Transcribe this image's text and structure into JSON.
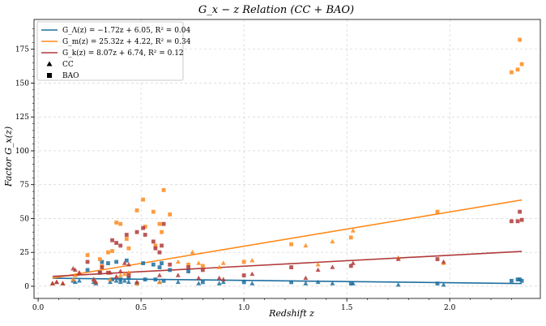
{
  "chart_data": {
    "type": "scatter",
    "title": "G_x − z Relation (CC + BAO)",
    "xlabel": "Redshift   z",
    "ylabel": "Factor   G_x(z)",
    "xlim": [
      -0.02,
      2.44
    ],
    "ylim": [
      -9,
      197
    ],
    "xticks": [
      0.0,
      0.5,
      1.0,
      1.5,
      2.0
    ],
    "xtick_labels": [
      "0.0",
      "0.5",
      "1.0",
      "1.5",
      "2.0"
    ],
    "yticks": [
      0,
      25,
      50,
      75,
      100,
      125,
      150,
      175
    ],
    "ytick_labels": [
      "0",
      "25",
      "50",
      "75",
      "100",
      "125",
      "150",
      "175"
    ],
    "grid": true,
    "legend_position": "top-left",
    "colors": {
      "lambda": "#1f6f9f",
      "m": "#ff8a1c",
      "k": "#b03a3a"
    },
    "fits": [
      {
        "key": "lambda",
        "label": "G_Λ(z) = −1.72z + 6.05, R² = 0.04",
        "slope": -1.72,
        "intercept": 6.05,
        "x_range": [
          0.07,
          2.35
        ]
      },
      {
        "key": "m",
        "label": "G_m(z) = 25.32z + 4.22, R² = 0.34",
        "slope": 25.32,
        "intercept": 4.22,
        "x_range": [
          0.07,
          2.35
        ]
      },
      {
        "key": "k",
        "label": "G_k(z) = 8.07z + 6.74, R² = 0.12",
        "slope": 8.07,
        "intercept": 6.74,
        "x_range": [
          0.07,
          2.35
        ]
      }
    ],
    "marker_legend": [
      {
        "marker": "triangle",
        "label": "CC"
      },
      {
        "marker": "square",
        "label": "BAO"
      }
    ],
    "series": [
      {
        "key": "lambda",
        "marker": "triangle",
        "points": [
          [
            0.07,
            2
          ],
          [
            0.09,
            3
          ],
          [
            0.12,
            2
          ],
          [
            0.17,
            4
          ],
          [
            0.18,
            3
          ],
          [
            0.2,
            4
          ],
          [
            0.27,
            3
          ],
          [
            0.28,
            2
          ],
          [
            0.35,
            3
          ],
          [
            0.38,
            4
          ],
          [
            0.4,
            3
          ],
          [
            0.42,
            4
          ],
          [
            0.44,
            3
          ],
          [
            0.48,
            2
          ],
          [
            0.59,
            3
          ],
          [
            0.68,
            3
          ],
          [
            0.78,
            2
          ],
          [
            0.88,
            2
          ],
          [
            0.9,
            3
          ],
          [
            1.04,
            2
          ],
          [
            1.3,
            2
          ],
          [
            1.36,
            3
          ],
          [
            1.43,
            2
          ],
          [
            1.53,
            2
          ],
          [
            1.75,
            1
          ],
          [
            1.97,
            1
          ]
        ]
      },
      {
        "key": "lambda",
        "marker": "square",
        "points": [
          [
            0.24,
            12
          ],
          [
            0.3,
            10
          ],
          [
            0.31,
            18
          ],
          [
            0.34,
            17
          ],
          [
            0.36,
            5
          ],
          [
            0.38,
            18
          ],
          [
            0.4,
            5
          ],
          [
            0.43,
            19
          ],
          [
            0.44,
            6
          ],
          [
            0.48,
            2
          ],
          [
            0.51,
            17
          ],
          [
            0.52,
            5
          ],
          [
            0.56,
            16
          ],
          [
            0.57,
            5
          ],
          [
            0.59,
            14
          ],
          [
            0.6,
            17
          ],
          [
            0.61,
            4
          ],
          [
            0.64,
            12
          ],
          [
            0.73,
            11
          ],
          [
            0.8,
            3
          ],
          [
            1.0,
            3
          ],
          [
            1.23,
            3
          ],
          [
            1.52,
            2
          ],
          [
            1.94,
            2
          ],
          [
            2.3,
            4
          ],
          [
            2.33,
            5
          ],
          [
            2.34,
            5
          ],
          [
            2.35,
            4
          ]
        ]
      },
      {
        "key": "m",
        "marker": "triangle",
        "points": [
          [
            0.07,
            2
          ],
          [
            0.09,
            3
          ],
          [
            0.12,
            2
          ],
          [
            0.17,
            5
          ],
          [
            0.18,
            8
          ],
          [
            0.2,
            10
          ],
          [
            0.27,
            5
          ],
          [
            0.28,
            3
          ],
          [
            0.35,
            5
          ],
          [
            0.38,
            7
          ],
          [
            0.4,
            8
          ],
          [
            0.42,
            9
          ],
          [
            0.44,
            10
          ],
          [
            0.48,
            2
          ],
          [
            0.59,
            3
          ],
          [
            0.68,
            18
          ],
          [
            0.75,
            25
          ],
          [
            0.78,
            17
          ],
          [
            0.88,
            14
          ],
          [
            0.9,
            17
          ],
          [
            1.04,
            19
          ],
          [
            1.3,
            30
          ],
          [
            1.36,
            16
          ],
          [
            1.43,
            33
          ],
          [
            1.53,
            41
          ],
          [
            1.75,
            21
          ],
          [
            1.97,
            17
          ]
        ]
      },
      {
        "key": "m",
        "marker": "square",
        "points": [
          [
            0.24,
            23
          ],
          [
            0.3,
            20
          ],
          [
            0.31,
            15
          ],
          [
            0.34,
            25
          ],
          [
            0.36,
            26
          ],
          [
            0.38,
            47
          ],
          [
            0.4,
            46
          ],
          [
            0.43,
            35
          ],
          [
            0.44,
            28
          ],
          [
            0.48,
            56
          ],
          [
            0.51,
            64
          ],
          [
            0.52,
            44
          ],
          [
            0.56,
            55
          ],
          [
            0.57,
            30
          ],
          [
            0.59,
            46
          ],
          [
            0.6,
            40
          ],
          [
            0.61,
            71
          ],
          [
            0.64,
            53
          ],
          [
            0.73,
            16
          ],
          [
            0.8,
            15
          ],
          [
            1.0,
            18
          ],
          [
            1.23,
            31
          ],
          [
            1.52,
            36
          ],
          [
            1.94,
            55
          ],
          [
            2.3,
            158
          ],
          [
            2.33,
            160
          ],
          [
            2.34,
            182
          ],
          [
            2.35,
            164
          ]
        ]
      },
      {
        "key": "k",
        "marker": "triangle",
        "points": [
          [
            0.07,
            2
          ],
          [
            0.09,
            3
          ],
          [
            0.12,
            2
          ],
          [
            0.17,
            13
          ],
          [
            0.18,
            12
          ],
          [
            0.2,
            10
          ],
          [
            0.27,
            5
          ],
          [
            0.28,
            3
          ],
          [
            0.35,
            10
          ],
          [
            0.38,
            7
          ],
          [
            0.4,
            11
          ],
          [
            0.42,
            17
          ],
          [
            0.44,
            16
          ],
          [
            0.48,
            3
          ],
          [
            0.59,
            8
          ],
          [
            0.68,
            8
          ],
          [
            0.78,
            6
          ],
          [
            0.88,
            6
          ],
          [
            0.9,
            5
          ],
          [
            1.04,
            9
          ],
          [
            1.3,
            6
          ],
          [
            1.36,
            12
          ],
          [
            1.43,
            14
          ],
          [
            1.53,
            17
          ],
          [
            1.75,
            20
          ],
          [
            1.97,
            18
          ]
        ]
      },
      {
        "key": "k",
        "marker": "square",
        "points": [
          [
            0.24,
            18
          ],
          [
            0.3,
            10
          ],
          [
            0.31,
            14
          ],
          [
            0.34,
            10
          ],
          [
            0.36,
            34
          ],
          [
            0.38,
            32
          ],
          [
            0.4,
            30
          ],
          [
            0.43,
            38
          ],
          [
            0.44,
            8
          ],
          [
            0.48,
            40
          ],
          [
            0.51,
            43
          ],
          [
            0.52,
            38
          ],
          [
            0.56,
            33
          ],
          [
            0.57,
            28
          ],
          [
            0.59,
            25
          ],
          [
            0.6,
            30
          ],
          [
            0.61,
            46
          ],
          [
            0.64,
            16
          ],
          [
            0.73,
            14
          ],
          [
            0.8,
            12
          ],
          [
            1.0,
            8
          ],
          [
            1.23,
            14
          ],
          [
            1.52,
            15
          ],
          [
            1.94,
            20
          ],
          [
            2.3,
            48
          ],
          [
            2.33,
            48
          ],
          [
            2.34,
            55
          ],
          [
            2.35,
            49
          ]
        ]
      }
    ]
  }
}
